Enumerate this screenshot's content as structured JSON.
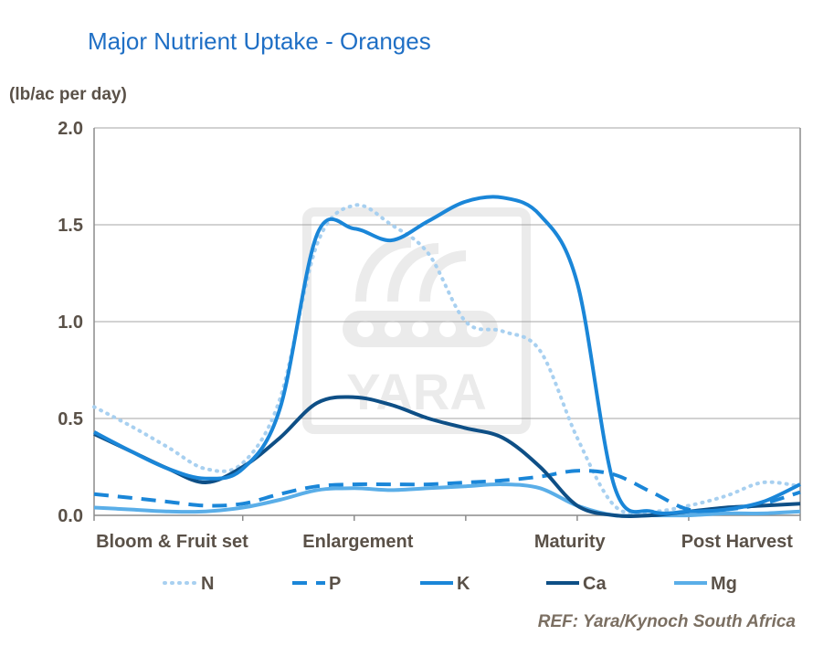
{
  "chart_data": {
    "type": "line",
    "title": "Major Nutrient Uptake - Oranges",
    "ylabel": "(lb/ac per day)",
    "source": "REF: Yara/Kynoch South Africa",
    "ylim": [
      0,
      2.0
    ],
    "yticks": [
      "0.0",
      "0.5",
      "1.0",
      "1.5",
      "2.0"
    ],
    "categories": [
      "Bloom & Fruit set",
      "Enlargement",
      "Maturity",
      "Post Harvest"
    ],
    "x": [
      0,
      0.5,
      1,
      1.5,
      2,
      2.5,
      3,
      3.5,
      4,
      4.5,
      5,
      5.5,
      6,
      6.5,
      7,
      7.5,
      8,
      8.5,
      9,
      9.5
    ],
    "grid": true,
    "legend_position": "bottom",
    "watermark": "YARA",
    "series": [
      {
        "name": "N",
        "style": "dotted",
        "color": "#a8d0f0",
        "values": [
          0.56,
          0.46,
          0.35,
          0.24,
          0.27,
          0.6,
          1.4,
          1.6,
          1.5,
          1.35,
          1.0,
          0.95,
          0.85,
          0.4,
          0.05,
          0.02,
          0.05,
          0.1,
          0.17,
          0.15
        ]
      },
      {
        "name": "P",
        "style": "dashed",
        "color": "#1a86d8",
        "values": [
          0.11,
          0.09,
          0.07,
          0.05,
          0.06,
          0.11,
          0.15,
          0.16,
          0.16,
          0.16,
          0.17,
          0.18,
          0.2,
          0.23,
          0.21,
          0.12,
          0.03,
          0.03,
          0.06,
          0.12
        ]
      },
      {
        "name": "K",
        "style": "solid",
        "color": "#1a86d8",
        "values": [
          0.43,
          0.33,
          0.24,
          0.19,
          0.24,
          0.55,
          1.45,
          1.48,
          1.42,
          1.52,
          1.62,
          1.64,
          1.55,
          1.2,
          0.15,
          0.02,
          0.02,
          0.03,
          0.07,
          0.16
        ]
      },
      {
        "name": "Ca",
        "style": "solid",
        "color": "#0e4f86",
        "values": [
          0.42,
          0.33,
          0.24,
          0.17,
          0.25,
          0.4,
          0.58,
          0.61,
          0.57,
          0.5,
          0.45,
          0.4,
          0.25,
          0.05,
          0.0,
          0.0,
          0.02,
          0.04,
          0.05,
          0.06
        ]
      },
      {
        "name": "Mg",
        "style": "solid",
        "color": "#5aaee8",
        "values": [
          0.04,
          0.03,
          0.02,
          0.02,
          0.04,
          0.08,
          0.13,
          0.14,
          0.13,
          0.14,
          0.15,
          0.16,
          0.14,
          0.05,
          0.0,
          0.0,
          0.0,
          0.01,
          0.01,
          0.02
        ]
      }
    ]
  }
}
